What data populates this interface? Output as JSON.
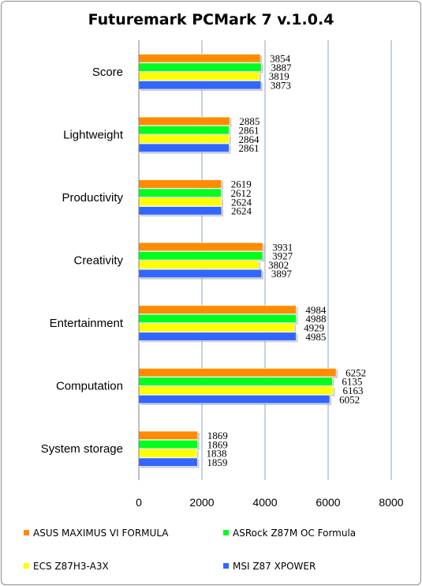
{
  "chart_data": {
    "type": "bar",
    "orientation": "horizontal",
    "title": "Futuremark PCMark 7 v.1.0.4",
    "xlabel": "",
    "ylabel": "",
    "categories": [
      "Score",
      "Lightweight",
      "Productivity",
      "Creativity",
      "Entertainment",
      "Computation",
      "System storage"
    ],
    "series": [
      {
        "name": "ASUS MAXIMUS VI FORMULA",
        "color": "#ff8c00",
        "values": [
          3854,
          2885,
          2619,
          3931,
          4984,
          6252,
          1869
        ]
      },
      {
        "name": "ASRock Z87M OC Formula",
        "color": "#00ff1e",
        "values": [
          3887,
          2861,
          2612,
          3927,
          4988,
          6135,
          1869
        ]
      },
      {
        "name": "ECS Z87H3-A3X",
        "color": "#ffff00",
        "values": [
          3819,
          2864,
          2624,
          3802,
          4929,
          6163,
          1838
        ]
      },
      {
        "name": "MSI Z87 XPOWER",
        "color": "#3366ff",
        "values": [
          3873,
          2861,
          2624,
          3897,
          4985,
          6052,
          1859
        ]
      }
    ],
    "xlim": [
      0,
      8000
    ],
    "ticks": [
      "0",
      "2000",
      "4000",
      "6000",
      "8000"
    ],
    "grid": true,
    "legend": "bottom"
  }
}
